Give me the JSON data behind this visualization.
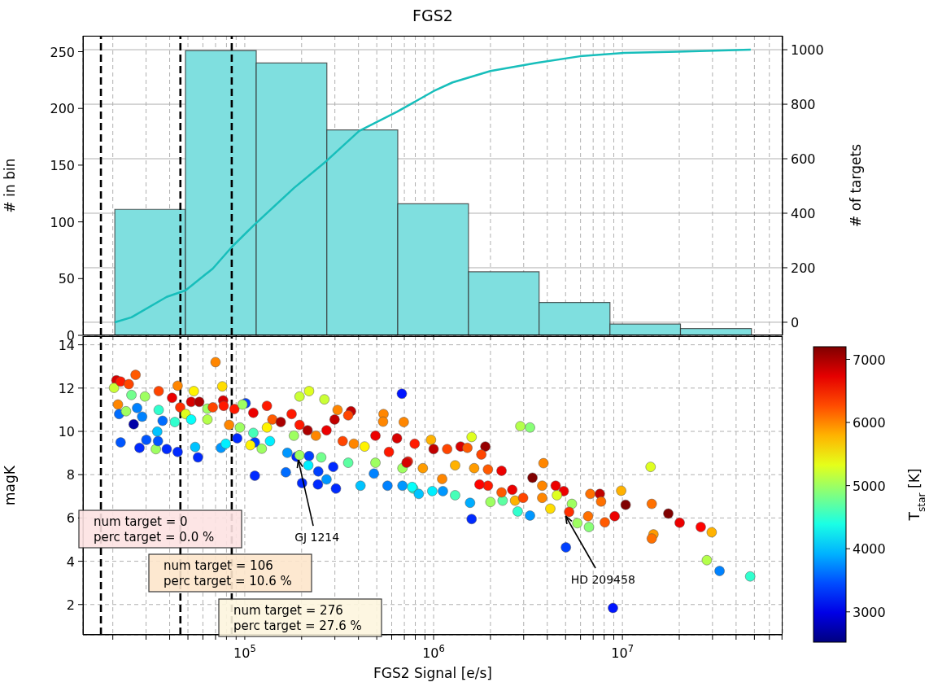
{
  "chart_data": [
    {
      "type": "histogram",
      "title": "FGS2",
      "ylabel": "# in bin",
      "y2label": "# of targets",
      "bins": [
        20500,
        48500,
        115000,
        272000,
        646000,
        1530000,
        3620000,
        8590000,
        20300000,
        48200000
      ],
      "values": [
        111,
        251,
        240,
        181,
        116,
        56,
        29,
        10,
        6
      ],
      "color": "#7fdfdf",
      "series": [
        {
          "type": "line",
          "axis": "y2",
          "color": "#17bebb",
          "x": [
            20500,
            25100,
            38600,
            48600,
            67700,
            85300,
            111200,
            182400,
            271000,
            403600,
            639500,
            1000000,
            1260000,
            2000000,
            3510000,
            5960000,
            10100000,
            19600000,
            47800000
          ],
          "values": [
            0,
            18,
            93,
            117,
            197,
            276,
            355,
            493,
            592,
            702,
            772,
            848,
            880,
            922,
            952,
            976,
            988,
            993,
            1000
          ]
        }
      ],
      "xlim": [
        13900,
        70500000
      ],
      "ylim": [
        0,
        264
      ],
      "yticks": [
        0,
        50,
        100,
        150,
        200,
        250
      ],
      "y2lim": [
        -48,
        1051
      ],
      "y2ticks": [
        0,
        200,
        400,
        600,
        800,
        1000
      ],
      "xticks": [
        {
          "value": 20000,
          "label": null
        },
        {
          "value": 30000,
          "label": null
        },
        {
          "value": 40000,
          "label": null
        },
        {
          "value": 50000,
          "label": null
        },
        {
          "value": 60000,
          "label": null
        },
        {
          "value": 70000,
          "label": null
        },
        {
          "value": 80000,
          "label": null
        },
        {
          "value": 90000,
          "label": null
        },
        {
          "value": 100000,
          "label": null
        },
        {
          "value": 200000,
          "label": null
        },
        {
          "value": 300000,
          "label": null
        },
        {
          "value": 400000,
          "label": null
        },
        {
          "value": 500000,
          "label": null
        },
        {
          "value": 600000,
          "label": null
        },
        {
          "value": 700000,
          "label": null
        },
        {
          "value": 800000,
          "label": null
        },
        {
          "value": 900000,
          "label": null
        },
        {
          "value": 1000000,
          "label": null
        },
        {
          "value": 2000000,
          "label": null
        },
        {
          "value": 3000000,
          "label": null
        },
        {
          "value": 4000000,
          "label": null
        },
        {
          "value": 5000000,
          "label": null
        },
        {
          "value": 6000000,
          "label": null
        },
        {
          "value": 7000000,
          "label": null
        },
        {
          "value": 8000000,
          "label": null
        },
        {
          "value": 9000000,
          "label": null
        },
        {
          "value": 10000000,
          "label": null
        },
        {
          "value": 20000000,
          "label": null
        },
        {
          "value": 30000000,
          "label": null
        },
        {
          "value": 40000000,
          "label": null
        },
        {
          "value": 50000000,
          "label": null
        },
        {
          "value": 60000000,
          "label": null
        },
        {
          "value": 70000000,
          "label": null
        }
      ],
      "log": "x",
      "grid": true,
      "tick_labels": "y",
      "ref_lines": [
        {
          "axis": "x",
          "value": 17300,
          "color": "#000000",
          "line_style": "dashed"
        },
        {
          "axis": "x",
          "value": 45600,
          "color": "#000000",
          "line_style": "dashed"
        },
        {
          "axis": "x",
          "value": 85300,
          "color": "#000000",
          "line_style": "dashed"
        }
      ]
    },
    {
      "type": "scatter",
      "xlabel": "FGS2 Signal [e/s]",
      "ylabel": "magK",
      "clabel": "T$_{star}$ [K]",
      "marker": "circle",
      "x": [
        20900,
        20300,
        22000,
        26400,
        24300,
        21300,
        21600,
        23500,
        22000,
        25800,
        26900,
        27700,
        28600,
        30100,
        33800,
        34400,
        34700,
        36700,
        38600,
        44100,
        42600,
        45500,
        44100,
        53700,
        56500,
        54600,
        70000,
        76000,
        74800,
        79300,
        76800,
        91200,
        101000,
        113000,
        113000,
        107000,
        123000,
        136000,
        165000,
        168000,
        188000,
        195000,
        201000,
        219000,
        217000,
        245000,
        244000,
        271000,
        304000,
        294000,
        195000,
        219000,
        264000,
        310000,
        365000,
        353000,
        410000,
        483000,
        543000,
        540000,
        695000,
        679000,
        570000,
        684000,
        780000,
        29600,
        35000,
        41200,
        52000,
        57400,
        63400,
        67700,
        77300,
        88100,
        97300,
        111000,
        131000,
        140000,
        155000,
        177000,
        195000,
        215000,
        238000,
        271000,
        299000,
        330000,
        378000,
        431000,
        492000,
        580000,
        640000,
        731000,
        684000,
        94200,
        131000,
        182000,
        254000,
        353000,
        492000,
        48600,
        63400,
        82600,
        25100,
        35000,
        52000,
        111000,
        719000,
        794000,
        969000,
        1000000,
        1180000,
        1390000,
        1880000,
        1590000,
        1790000,
        1510000,
        877000,
        1110000,
        1300000,
        1640000,
        1940000,
        2290000,
        769000,
        835000,
        984000,
        1120000,
        1300000,
        1560000,
        1590000,
        2000000,
        2320000,
        1940000,
        2610000,
        2700000,
        2790000,
        3240000,
        2880000,
        3240000,
        3820000,
        3340000,
        3760000,
        4430000,
        4890000,
        4500000,
        3760000,
        4150000,
        5400000,
        5220000,
        5770000,
        5020000,
        6760000,
        7590000,
        7710000,
        6580000,
        6650000,
        8070000,
        9100000,
        9850000,
        10400000,
        8910000,
        14100000,
        14300000,
        14600000,
        14300000,
        17500000,
        20100000,
        26000000,
        29700000,
        28000000,
        32700000,
        47500000,
        2290000,
        2980000,
        1750000
      ],
      "values": [
        12.36,
        12.01,
        12.3,
        12.61,
        12.18,
        11.24,
        10.8,
        10.93,
        9.49,
        10.33,
        11.08,
        9.24,
        10.68,
        9.61,
        9.18,
        9.99,
        9.55,
        10.49,
        9.18,
        9.05,
        10.43,
        11.11,
        12.11,
        11.86,
        8.8,
        9.28,
        13.2,
        12.08,
        9.24,
        9.43,
        11.43,
        9.68,
        11.3,
        7.95,
        9.49,
        9.36,
        9.2,
        9.55,
        8.11,
        9.01,
        8.83,
        8.9,
        7.61,
        8.86,
        8.43,
        8.15,
        7.55,
        7.78,
        7.36,
        8.36,
        11.61,
        11.86,
        11.48,
        10.99,
        10.93,
        10.74,
        7.49,
        8.05,
        10.8,
        10.45,
        10.43,
        11.74,
        7.49,
        7.49,
        7.36,
        11.61,
        11.86,
        11.55,
        11.36,
        11.36,
        11.05,
        11.11,
        11.18,
        11.03,
        11.24,
        10.86,
        11.18,
        10.55,
        10.43,
        10.8,
        10.3,
        10.05,
        9.8,
        10.05,
        10.55,
        9.55,
        9.43,
        9.3,
        9.8,
        9.05,
        9.68,
        8.61,
        8.3,
        10.18,
        10.18,
        9.8,
        8.8,
        8.55,
        8.55,
        10.8,
        10.55,
        10.3,
        11.68,
        10.99,
        10.55,
        9.93,
        8.55,
        9.43,
        9.61,
        9.18,
        9.18,
        9.3,
        9.3,
        9.74,
        8.93,
        9.24,
        8.3,
        7.8,
        8.43,
        8.3,
        8.24,
        8.18,
        7.43,
        7.11,
        7.24,
        7.24,
        7.05,
        6.7,
        5.95,
        6.74,
        6.8,
        7.49,
        7.3,
        6.8,
        6.3,
        6.11,
        10.24,
        10.18,
        8.53,
        7.86,
        7.49,
        7.49,
        7.24,
        7.05,
        6.93,
        6.43,
        6.65,
        6.28,
        5.76,
        4.64,
        7.11,
        7.11,
        6.76,
        6.08,
        5.58,
        5.8,
        6.08,
        7.26,
        6.61,
        1.84,
        8.36,
        6.65,
        5.24,
        5.05,
        6.2,
        5.78,
        5.58,
        5.34,
        4.05,
        3.55,
        3.3,
        7.18,
        6.93,
        7.55
      ],
      "cvalues": [
        6800,
        5200,
        6500,
        6200,
        6300,
        6000,
        3600,
        5000,
        3500,
        2700,
        3700,
        3300,
        3700,
        3500,
        5000,
        4000,
        3500,
        3600,
        3300,
        3300,
        4500,
        6400,
        6000,
        5500,
        3300,
        4000,
        6000,
        5600,
        3800,
        4200,
        6800,
        3300,
        3400,
        3300,
        3400,
        5500,
        5000,
        4200,
        3600,
        3800,
        3300,
        5000,
        3300,
        3400,
        4200,
        3400,
        3300,
        3800,
        3300,
        3300,
        5200,
        5300,
        5200,
        6000,
        6900,
        6300,
        4000,
        3700,
        6000,
        6000,
        6000,
        3200,
        3700,
        3800,
        4500,
        5000,
        6300,
        6700,
        6800,
        7000,
        5000,
        6300,
        6500,
        6500,
        5000,
        6700,
        6500,
        6200,
        7000,
        6500,
        6500,
        7000,
        6000,
        6700,
        6900,
        6300,
        6000,
        5500,
        6700,
        6500,
        6800,
        6500,
        5000,
        5000,
        5500,
        5000,
        4800,
        4700,
        5000,
        5300,
        5100,
        6000,
        4800,
        4500,
        4300,
        4600,
        6800,
        6500,
        5800,
        6900,
        6300,
        6800,
        7100,
        5300,
        6300,
        6200,
        5900,
        6000,
        5800,
        5900,
        6200,
        6700,
        4300,
        4000,
        4200,
        3800,
        4600,
        3900,
        3300,
        5000,
        4700,
        6500,
        6700,
        5800,
        4500,
        3800,
        5100,
        4900,
        6000,
        7200,
        6000,
        6700,
        6700,
        5300,
        6000,
        5600,
        5000,
        6400,
        5000,
        3400,
        6100,
        6900,
        6100,
        6100,
        4900,
        6200,
        6700,
        5800,
        7200,
        3200,
        5300,
        6100,
        5900,
        6100,
        7200,
        6700,
        6600,
        5800,
        5100,
        3700,
        4500,
        6200,
        6300,
        6600
      ],
      "clim": [
        2520,
        7200
      ],
      "cticks": [
        3000,
        4000,
        5000,
        6000,
        7000
      ],
      "xlim": [
        13900,
        70500000
      ],
      "ylim": [
        0.6,
        14.4
      ],
      "yticks": [
        2,
        4,
        6,
        8,
        10,
        12,
        14
      ],
      "xticks": [
        {
          "value": 20000,
          "label": null
        },
        {
          "value": 30000,
          "label": null
        },
        {
          "value": 40000,
          "label": null
        },
        {
          "value": 50000,
          "label": null
        },
        {
          "value": 60000,
          "label": null
        },
        {
          "value": 70000,
          "label": null
        },
        {
          "value": 80000,
          "label": null
        },
        {
          "value": 90000,
          "label": null
        },
        {
          "value": 100000,
          "label": "10$^{5}$"
        },
        {
          "value": 200000,
          "label": null
        },
        {
          "value": 300000,
          "label": null
        },
        {
          "value": 400000,
          "label": null
        },
        {
          "value": 500000,
          "label": null
        },
        {
          "value": 600000,
          "label": null
        },
        {
          "value": 700000,
          "label": null
        },
        {
          "value": 800000,
          "label": null
        },
        {
          "value": 900000,
          "label": null
        },
        {
          "value": 1000000,
          "label": "10$^{6}$"
        },
        {
          "value": 2000000,
          "label": null
        },
        {
          "value": 3000000,
          "label": null
        },
        {
          "value": 4000000,
          "label": null
        },
        {
          "value": 5000000,
          "label": null
        },
        {
          "value": 6000000,
          "label": null
        },
        {
          "value": 7000000,
          "label": null
        },
        {
          "value": 8000000,
          "label": null
        },
        {
          "value": 9000000,
          "label": null
        },
        {
          "value": 10000000,
          "label": "10$^{7}$"
        },
        {
          "value": 20000000,
          "label": null
        },
        {
          "value": 30000000,
          "label": null
        },
        {
          "value": 40000000,
          "label": null
        },
        {
          "value": 50000000,
          "label": null
        },
        {
          "value": 60000000,
          "label": null
        },
        {
          "value": 70000000,
          "label": null
        }
      ],
      "log": "x",
      "grid": true,
      "ref_lines": [
        {
          "axis": "x",
          "value": 17300,
          "color": "#000000",
          "line_style": "dashed"
        },
        {
          "axis": "x",
          "value": 45600,
          "color": "#000000",
          "line_style": "dashed"
        },
        {
          "axis": "x",
          "value": 85300,
          "color": "#000000",
          "line_style": "dashed"
        }
      ],
      "annotations": [
        "num target = 0\nperc target = 0.0 %",
        "num target = 106\nperc target = 10.6 %",
        "num target = 276\nperc target = 27.6 %",
        {
          "text": "GJ 1214",
          "x": 192000,
          "y": 8.68
        },
        {
          "text": "HD 209458",
          "x": 5000000,
          "y": 6.09
        }
      ]
    }
  ]
}
